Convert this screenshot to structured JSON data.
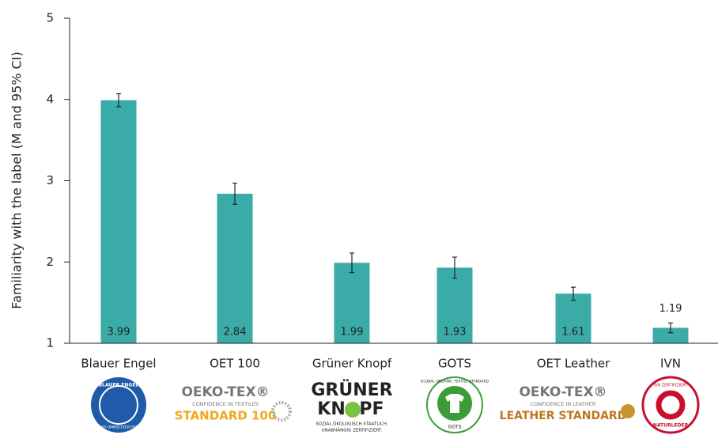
{
  "chart_data": {
    "type": "bar",
    "ylabel": "Familiarity with the label (M and 95% CI)",
    "categories": [
      "Blauer Engel",
      "OET 100",
      "Grüner Knopf",
      "GOTS",
      "OET Leather",
      "IVN"
    ],
    "values": [
      3.99,
      2.84,
      1.99,
      1.93,
      1.61,
      1.19
    ],
    "errors": [
      0.08,
      0.13,
      0.12,
      0.13,
      0.08,
      0.06
    ],
    "color": "#3aaba7",
    "ylim": [
      1,
      5
    ],
    "yticks": [
      1,
      2,
      3,
      4,
      5
    ]
  },
  "logos": [
    {
      "lines": [
        "BLAUER ENGEL",
        "DAS UMWELTZEICHEN"
      ]
    },
    {
      "lines": [
        "OEKO-TEX®",
        "CONFIDENCE IN TEXTILES",
        "STANDARD 100"
      ]
    },
    {
      "lines": [
        "GRÜNER",
        "KN",
        "PF",
        "SOZIAL.ÖKOLOGISCH.STAATLICH.",
        "UNABHÄNGIG ZERTIFIZIERT."
      ]
    },
    {
      "lines": [
        "GLOBAL ORGANIC TEXTILE STANDARD",
        "GOTS"
      ]
    },
    {
      "lines": [
        "OEKO-TEX®",
        "CONFIDENCE IN LEATHER",
        "LEATHER STANDARD"
      ]
    },
    {
      "lines": [
        "IVN ZERTIFIZIERT",
        "NATURLEDER"
      ]
    }
  ]
}
